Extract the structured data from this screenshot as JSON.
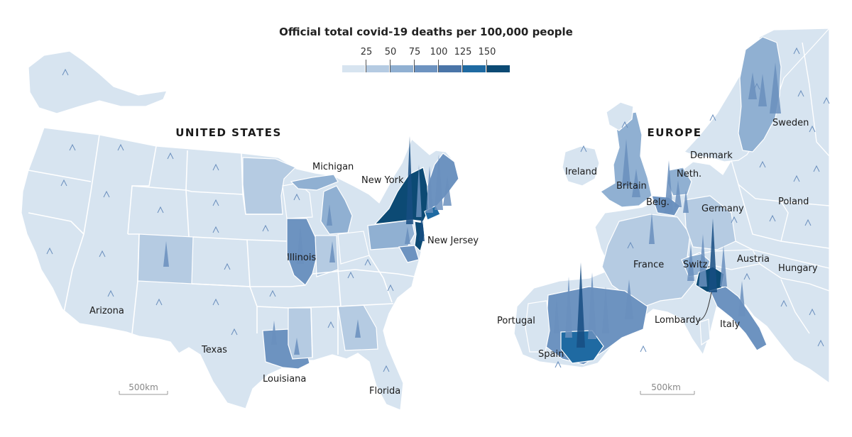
{
  "title": "Official total covid-19 deaths per 100,000 people",
  "legend": {
    "ticks": [
      "25",
      "50",
      "75",
      "100",
      "125",
      "150"
    ],
    "colors": [
      "#d7e4f0",
      "#b5cbe2",
      "#90b0d2",
      "#6d93c0",
      "#4a75a8",
      "#1f6aa2",
      "#0c4a74"
    ]
  },
  "colors": {
    "land": "#dbe6f1",
    "border": "#ffffff",
    "spike": "#6a8fbd",
    "spike_dark": "#174e82"
  },
  "us": {
    "region_title": "UNITED STATES",
    "labels": {
      "michigan": "Michigan",
      "new_york": "New York",
      "new_jersey": "New Jersey",
      "illinois": "Illinois",
      "arizona": "Arizona",
      "texas": "Texas",
      "louisiana": "Louisiana",
      "florida": "Florida"
    },
    "scale_label": "500km"
  },
  "europe": {
    "region_title": "EUROPE",
    "labels": {
      "sweden": "Sweden",
      "denmark": "Denmark",
      "ireland": "Ireland",
      "britain": "Britain",
      "neth": "Neth.",
      "belg": "Belg.",
      "germany": "Germany",
      "poland": "Poland",
      "france": "France",
      "switz": "Switz.",
      "austria": "Austria",
      "hungary": "Hungary",
      "portugal": "Portugal",
      "lombardy": "Lombardy",
      "italy": "Italy",
      "spain": "Spain"
    },
    "scale_label": "500km"
  }
}
